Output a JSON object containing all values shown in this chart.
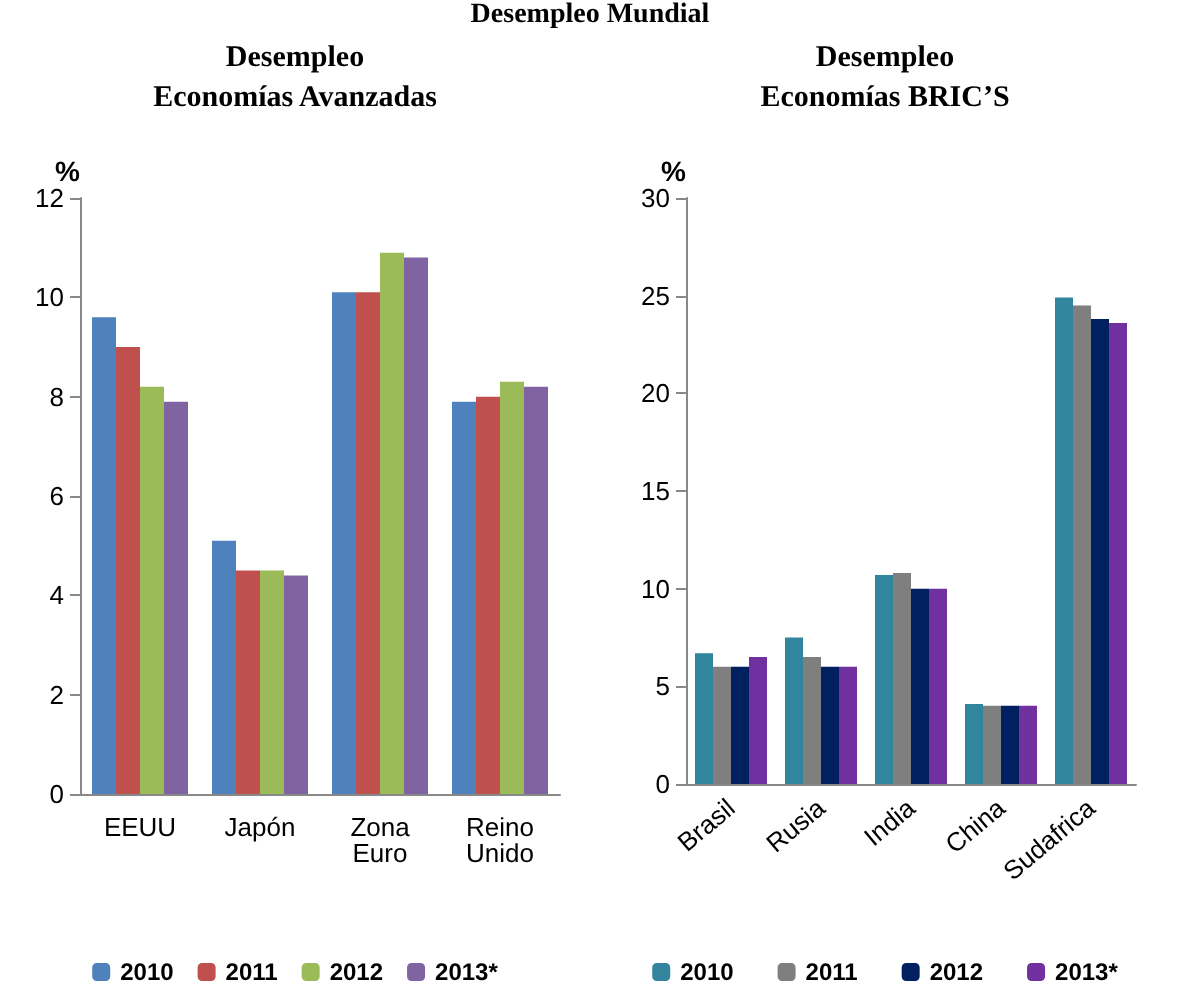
{
  "chart_data": [
    {
      "type": "bar",
      "title": "Desempleo\nEconomías Avanzadas",
      "ylabel": "%",
      "annotations": [
        "Desempleo Mundial"
      ],
      "categories": [
        "EEUU",
        "Japón",
        "Zona\nEuro",
        "Reino\nUnido"
      ],
      "series": [
        {
          "name": "2010",
          "color": "#4f81bd",
          "values": [
            9.6,
            5.1,
            10.1,
            7.9
          ]
        },
        {
          "name": "2011",
          "color": "#c0504d",
          "values": [
            9.0,
            4.5,
            10.1,
            8.0
          ]
        },
        {
          "name": "2012",
          "color": "#9bbb59",
          "values": [
            8.2,
            4.5,
            10.9,
            8.3
          ]
        },
        {
          "name": "2013*",
          "color": "#8064a2",
          "values": [
            7.9,
            4.4,
            10.8,
            8.2
          ]
        }
      ],
      "ylim": [
        0,
        12
      ],
      "yticks": [
        0,
        2,
        4,
        6,
        8,
        10,
        12
      ],
      "grid": false,
      "legend": "bottom"
    },
    {
      "type": "bar",
      "title": "Desempleo\nEconomías BRIC’S",
      "ylabel": "%",
      "categories": [
        "Brasil",
        "Rusia",
        "India",
        "China",
        "Sudafrica"
      ],
      "series": [
        {
          "name": "2010",
          "color": "#31859c",
          "values": [
            6.7,
            7.5,
            10.7,
            4.1,
            24.9
          ]
        },
        {
          "name": "2011",
          "color": "#7f7f7f",
          "values": [
            6.0,
            6.5,
            10.8,
            4.0,
            24.5
          ]
        },
        {
          "name": "2012",
          "color": "#002060",
          "values": [
            6.0,
            6.0,
            10.0,
            4.0,
            23.8
          ]
        },
        {
          "name": "2013*",
          "color": "#7030a0",
          "values": [
            6.5,
            6.0,
            10.0,
            4.0,
            23.6
          ]
        }
      ],
      "ylim": [
        0,
        30
      ],
      "yticks": [
        0,
        5,
        10,
        15,
        20,
        25,
        30
      ],
      "grid": false,
      "legend": "bottom"
    }
  ]
}
